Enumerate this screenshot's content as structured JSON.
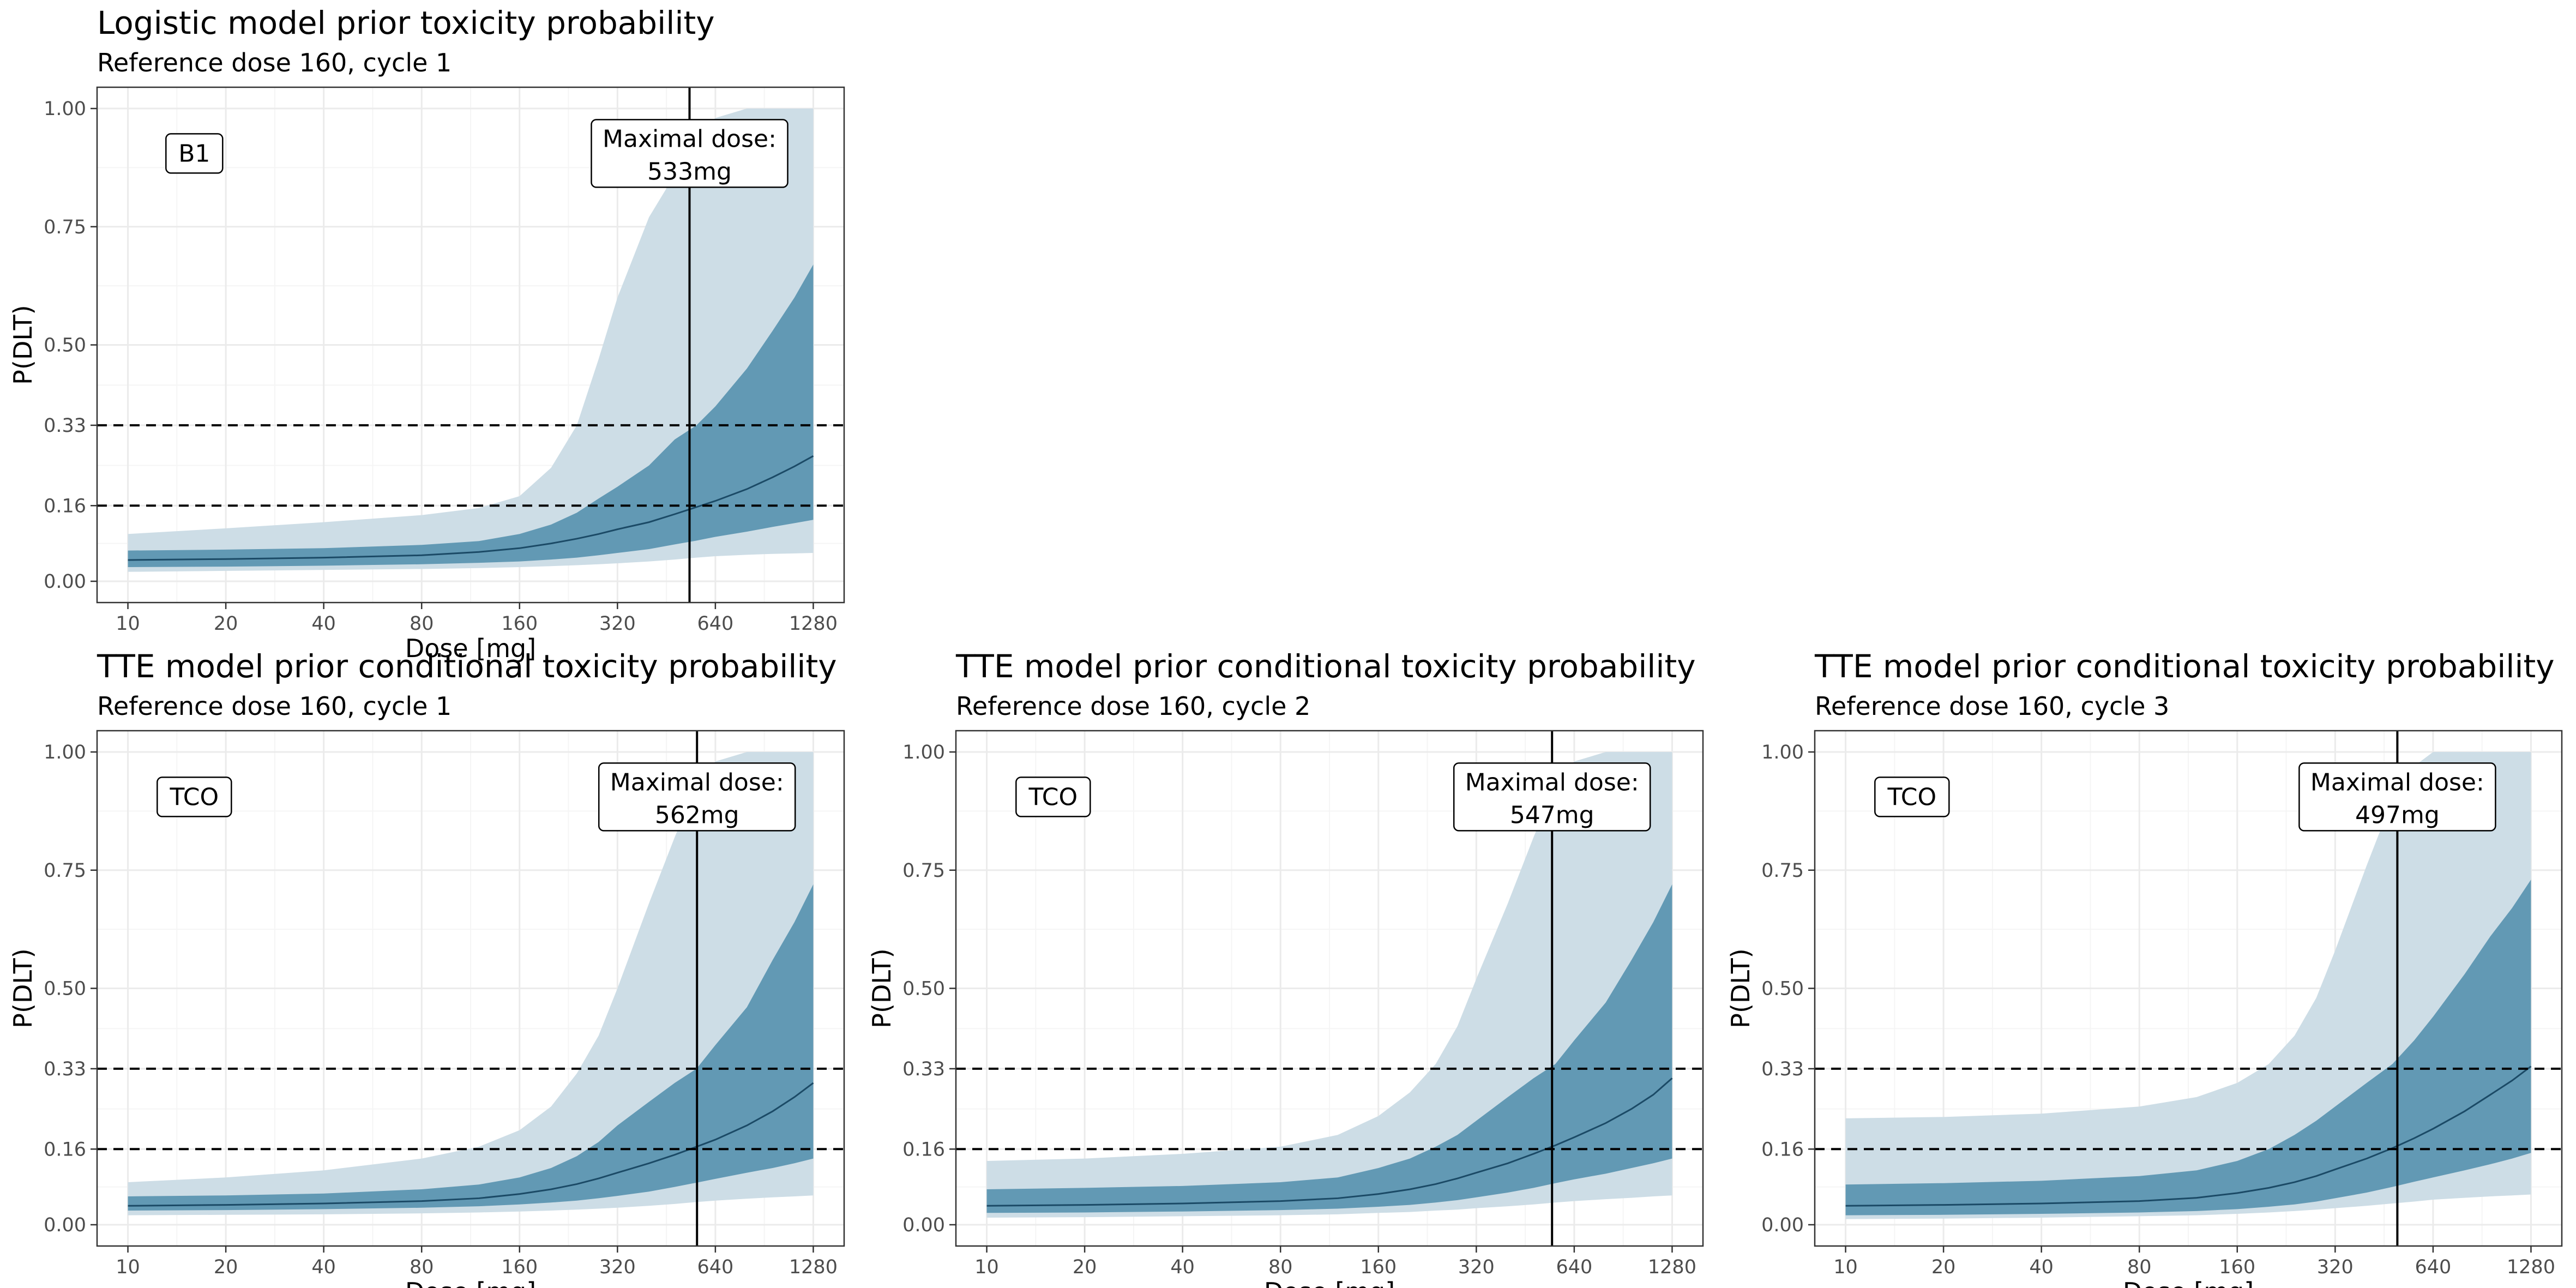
{
  "colors": {
    "outer_band": "#cddde6",
    "inner_band": "#6299b4",
    "median": "#1b4a66",
    "grid_major": "#ebebeb",
    "grid_minor": "#f5f5f5",
    "panel_border": "#333333",
    "tick_text": "#4d4d4d"
  },
  "shared": {
    "xlabel": "Dose [mg]",
    "ylabel": "P(DLT)",
    "x_ticks": [
      10,
      20,
      40,
      80,
      160,
      320,
      640,
      1280
    ],
    "x_tick_labels": [
      "10",
      "20",
      "40",
      "80",
      "160",
      "320",
      "640",
      "1280"
    ],
    "x_scale": "log2",
    "xlim": [
      10,
      1280
    ],
    "y_ticks": [
      0.0,
      0.16,
      0.33,
      0.5,
      0.75,
      1.0
    ],
    "y_tick_labels": [
      "0.00",
      "0.16",
      "0.33",
      "0.50",
      "0.75",
      "1.00"
    ],
    "ylim": [
      0,
      1
    ],
    "reference_lines": [
      0.16,
      0.33
    ],
    "maximal_dose_label": "Maximal dose:",
    "grid": true
  },
  "chart_data": [
    {
      "type": "area",
      "title": "Logistic model prior toxicity probability",
      "subtitle": "Reference dose 160, cycle 1",
      "tag": "B1",
      "maximal_dose": 533,
      "maximal_dose_text": "533mg",
      "x": [
        10,
        20,
        40,
        80,
        120,
        160,
        200,
        240,
        280,
        320,
        400,
        480,
        560,
        640,
        800,
        960,
        1120,
        1280
      ],
      "series": [
        {
          "role": "outer_band",
          "lower": [
            0.02,
            0.022,
            0.024,
            0.026,
            0.028,
            0.03,
            0.032,
            0.034,
            0.036,
            0.038,
            0.042,
            0.046,
            0.05,
            0.053,
            0.056,
            0.058,
            0.059,
            0.06
          ],
          "upper": [
            0.1,
            0.112,
            0.125,
            0.14,
            0.155,
            0.18,
            0.24,
            0.33,
            0.47,
            0.6,
            0.77,
            0.86,
            0.94,
            0.98,
            1.0,
            1.0,
            1.0,
            1.0
          ]
        },
        {
          "role": "inner_band",
          "lower": [
            0.03,
            0.031,
            0.033,
            0.036,
            0.039,
            0.042,
            0.046,
            0.05,
            0.055,
            0.06,
            0.068,
            0.078,
            0.086,
            0.094,
            0.105,
            0.115,
            0.123,
            0.13
          ],
          "upper": [
            0.065,
            0.067,
            0.07,
            0.077,
            0.085,
            0.1,
            0.12,
            0.145,
            0.175,
            0.2,
            0.245,
            0.3,
            0.33,
            0.37,
            0.45,
            0.53,
            0.6,
            0.67
          ]
        },
        {
          "role": "median",
          "values": [
            0.045,
            0.047,
            0.05,
            0.055,
            0.062,
            0.07,
            0.08,
            0.09,
            0.1,
            0.11,
            0.125,
            0.142,
            0.157,
            0.17,
            0.195,
            0.22,
            0.243,
            0.265
          ]
        }
      ]
    },
    {
      "type": "area",
      "title": "TTE model prior conditional toxicity probability",
      "subtitle": "Reference dose 160, cycle 1",
      "tag": "TCO",
      "maximal_dose": 562,
      "maximal_dose_text": "562mg",
      "x": [
        10,
        20,
        40,
        80,
        120,
        160,
        200,
        240,
        280,
        320,
        400,
        480,
        560,
        640,
        800,
        960,
        1120,
        1280
      ],
      "series": [
        {
          "role": "outer_band",
          "lower": [
            0.02,
            0.021,
            0.022,
            0.024,
            0.026,
            0.028,
            0.03,
            0.032,
            0.034,
            0.036,
            0.04,
            0.044,
            0.048,
            0.051,
            0.055,
            0.058,
            0.06,
            0.062
          ],
          "upper": [
            0.09,
            0.1,
            0.115,
            0.14,
            0.165,
            0.2,
            0.25,
            0.32,
            0.4,
            0.5,
            0.68,
            0.82,
            0.93,
            0.98,
            1.0,
            1.0,
            1.0,
            1.0
          ]
        },
        {
          "role": "inner_band",
          "lower": [
            0.03,
            0.031,
            0.033,
            0.036,
            0.039,
            0.043,
            0.047,
            0.051,
            0.056,
            0.061,
            0.07,
            0.08,
            0.089,
            0.097,
            0.11,
            0.12,
            0.13,
            0.14
          ],
          "upper": [
            0.06,
            0.062,
            0.066,
            0.075,
            0.085,
            0.1,
            0.12,
            0.145,
            0.175,
            0.21,
            0.26,
            0.3,
            0.33,
            0.38,
            0.46,
            0.56,
            0.64,
            0.72
          ]
        },
        {
          "role": "median",
          "values": [
            0.04,
            0.042,
            0.045,
            0.05,
            0.056,
            0.065,
            0.075,
            0.086,
            0.098,
            0.11,
            0.13,
            0.148,
            0.165,
            0.18,
            0.21,
            0.24,
            0.27,
            0.3
          ]
        }
      ]
    },
    {
      "type": "area",
      "title": "TTE model prior conditional toxicity probability",
      "subtitle": "Reference dose 160, cycle 2",
      "tag": "TCO",
      "maximal_dose": 547,
      "maximal_dose_text": "547mg",
      "x": [
        10,
        20,
        40,
        80,
        120,
        160,
        200,
        240,
        280,
        320,
        400,
        480,
        560,
        640,
        800,
        960,
        1120,
        1280
      ],
      "series": [
        {
          "role": "outer_band",
          "lower": [
            0.015,
            0.016,
            0.018,
            0.02,
            0.022,
            0.025,
            0.027,
            0.03,
            0.032,
            0.035,
            0.039,
            0.043,
            0.047,
            0.05,
            0.054,
            0.057,
            0.06,
            0.062
          ],
          "upper": [
            0.135,
            0.14,
            0.15,
            0.165,
            0.19,
            0.23,
            0.28,
            0.34,
            0.42,
            0.52,
            0.68,
            0.82,
            0.93,
            0.98,
            1.0,
            1.0,
            1.0,
            1.0
          ]
        },
        {
          "role": "inner_band",
          "lower": [
            0.025,
            0.026,
            0.028,
            0.031,
            0.034,
            0.038,
            0.042,
            0.047,
            0.052,
            0.058,
            0.068,
            0.078,
            0.088,
            0.096,
            0.108,
            0.12,
            0.13,
            0.14
          ],
          "upper": [
            0.075,
            0.078,
            0.082,
            0.09,
            0.1,
            0.12,
            0.14,
            0.165,
            0.19,
            0.22,
            0.27,
            0.31,
            0.34,
            0.39,
            0.47,
            0.56,
            0.64,
            0.72
          ]
        },
        {
          "role": "median",
          "values": [
            0.04,
            0.042,
            0.045,
            0.05,
            0.056,
            0.065,
            0.075,
            0.086,
            0.098,
            0.11,
            0.13,
            0.15,
            0.168,
            0.185,
            0.215,
            0.245,
            0.275,
            0.31
          ]
        }
      ]
    },
    {
      "type": "area",
      "title": "TTE model prior conditional toxicity probability",
      "subtitle": "Reference dose 160, cycle 3",
      "tag": "TCO",
      "maximal_dose": 497,
      "maximal_dose_text": "497mg",
      "x": [
        10,
        20,
        40,
        80,
        120,
        160,
        200,
        240,
        280,
        320,
        400,
        480,
        560,
        640,
        800,
        960,
        1120,
        1280
      ],
      "series": [
        {
          "role": "outer_band",
          "lower": [
            0.012,
            0.013,
            0.015,
            0.018,
            0.02,
            0.023,
            0.026,
            0.029,
            0.032,
            0.035,
            0.04,
            0.045,
            0.049,
            0.053,
            0.057,
            0.06,
            0.062,
            0.064
          ],
          "upper": [
            0.225,
            0.228,
            0.235,
            0.25,
            0.27,
            0.3,
            0.34,
            0.4,
            0.48,
            0.58,
            0.76,
            0.9,
            0.97,
            1.0,
            1.0,
            1.0,
            1.0,
            1.0
          ]
        },
        {
          "role": "inner_band",
          "lower": [
            0.02,
            0.021,
            0.023,
            0.026,
            0.029,
            0.033,
            0.038,
            0.043,
            0.049,
            0.056,
            0.068,
            0.08,
            0.091,
            0.1,
            0.115,
            0.128,
            0.14,
            0.152
          ],
          "upper": [
            0.085,
            0.088,
            0.093,
            0.103,
            0.115,
            0.135,
            0.16,
            0.19,
            0.22,
            0.25,
            0.3,
            0.34,
            0.39,
            0.44,
            0.53,
            0.61,
            0.67,
            0.73
          ]
        },
        {
          "role": "median",
          "values": [
            0.04,
            0.042,
            0.045,
            0.05,
            0.057,
            0.067,
            0.078,
            0.09,
            0.103,
            0.117,
            0.14,
            0.162,
            0.183,
            0.203,
            0.24,
            0.275,
            0.305,
            0.335
          ]
        }
      ]
    }
  ]
}
